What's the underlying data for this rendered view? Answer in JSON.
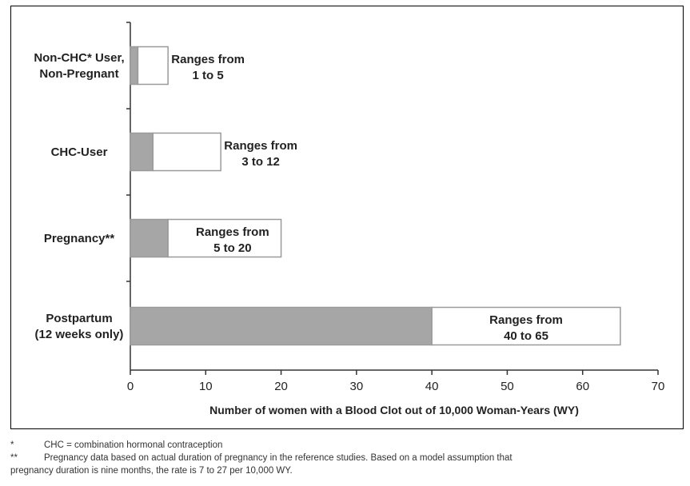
{
  "chart_data": {
    "type": "bar",
    "orientation": "horizontal",
    "categories": [
      [
        "Non-CHC* User,",
        "Non-Pregnant"
      ],
      [
        "CHC-User"
      ],
      [
        "Pregnancy**"
      ],
      [
        "Postpartum",
        "(12 weeks only)"
      ]
    ],
    "series": [
      {
        "values": [
          1,
          3,
          5,
          40
        ],
        "color": "#a6a6a6"
      },
      {
        "values": [
          4,
          9,
          15,
          25
        ],
        "color": "#ffffff"
      }
    ],
    "range_labels": [
      [
        "Ranges from",
        "1 to 5"
      ],
      [
        "Ranges from",
        "3 to 12"
      ],
      [
        "Ranges from",
        "5 to 20"
      ],
      [
        "Ranges from",
        "40 to 65"
      ]
    ],
    "xlabel": "Number of women with a Blood Clot out of 10,000 Woman-Years (WY)",
    "xlim": [
      0,
      70
    ],
    "xticks": [
      0,
      10,
      20,
      30,
      40,
      50,
      60,
      70
    ],
    "grid": false,
    "bar_outline": "#9a9a9a"
  },
  "footnotes": [
    {
      "mark": "*",
      "text": "CHC = combination hormonal contraception",
      "continuation": ""
    },
    {
      "mark": "**",
      "text": "Pregnancy data based on actual duration of pregnancy in the reference studies. Based on a model assumption that",
      "continuation": "pregnancy duration is nine months, the rate is 7 to 27 per 10,000 WY."
    }
  ]
}
